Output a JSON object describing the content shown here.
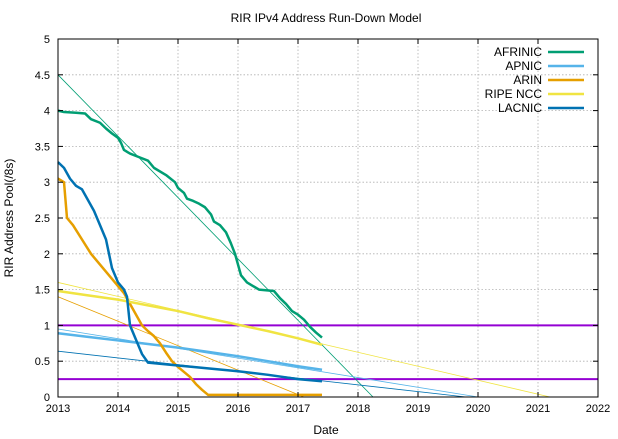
{
  "chart_data": {
    "type": "line",
    "title": "RIR IPv4 Address Run-Down Model",
    "xlabel": "Date",
    "ylabel": "RIR Address Pool(/8s)",
    "xlim": [
      2013,
      2022
    ],
    "ylim": [
      0,
      5
    ],
    "x_ticks": [
      "2013",
      "2014",
      "2015",
      "2016",
      "2017",
      "2018",
      "2019",
      "2020",
      "2021",
      "2022"
    ],
    "y_ticks": [
      "0",
      "0.5",
      "1",
      "1.5",
      "2",
      "2.5",
      "3",
      "3.5",
      "4",
      "4.5",
      "5"
    ],
    "grid": true,
    "legend_position": "top-right",
    "thresholds": [
      {
        "y": 1.0,
        "color": "#9400d3"
      },
      {
        "y": 0.25,
        "color": "#9400d3"
      }
    ],
    "series": [
      {
        "name": "AFRINIC",
        "color": "#009e73",
        "points": [
          [
            2013.0,
            4.0
          ],
          [
            2013.1,
            3.98
          ],
          [
            2013.3,
            3.97
          ],
          [
            2013.45,
            3.96
          ],
          [
            2013.55,
            3.88
          ],
          [
            2013.7,
            3.83
          ],
          [
            2013.8,
            3.75
          ],
          [
            2013.9,
            3.68
          ],
          [
            2014.0,
            3.62
          ],
          [
            2014.05,
            3.55
          ],
          [
            2014.1,
            3.45
          ],
          [
            2014.2,
            3.4
          ],
          [
            2014.35,
            3.35
          ],
          [
            2014.5,
            3.3
          ],
          [
            2014.6,
            3.2
          ],
          [
            2014.8,
            3.1
          ],
          [
            2014.95,
            3.0
          ],
          [
            2015.0,
            2.92
          ],
          [
            2015.1,
            2.85
          ],
          [
            2015.15,
            2.77
          ],
          [
            2015.25,
            2.74
          ],
          [
            2015.35,
            2.7
          ],
          [
            2015.45,
            2.65
          ],
          [
            2015.55,
            2.55
          ],
          [
            2015.6,
            2.45
          ],
          [
            2015.7,
            2.4
          ],
          [
            2015.8,
            2.3
          ],
          [
            2015.88,
            2.15
          ],
          [
            2015.95,
            2.0
          ],
          [
            2016.0,
            1.85
          ],
          [
            2016.05,
            1.7
          ],
          [
            2016.15,
            1.6
          ],
          [
            2016.25,
            1.55
          ],
          [
            2016.35,
            1.5
          ],
          [
            2016.6,
            1.48
          ],
          [
            2016.7,
            1.38
          ],
          [
            2016.8,
            1.3
          ],
          [
            2016.9,
            1.2
          ],
          [
            2017.0,
            1.15
          ],
          [
            2017.1,
            1.08
          ],
          [
            2017.2,
            0.98
          ],
          [
            2017.3,
            0.9
          ],
          [
            2017.4,
            0.83
          ]
        ],
        "trend": [
          [
            2013.0,
            4.5
          ],
          [
            2018.25,
            0.0
          ]
        ]
      },
      {
        "name": "APNIC",
        "color": "#56b4e9",
        "points": [
          [
            2013.0,
            0.89
          ],
          [
            2013.5,
            0.84
          ],
          [
            2014.0,
            0.79
          ],
          [
            2014.5,
            0.74
          ],
          [
            2015.0,
            0.69
          ],
          [
            2015.5,
            0.63
          ],
          [
            2016.0,
            0.57
          ],
          [
            2016.5,
            0.5
          ],
          [
            2017.0,
            0.43
          ],
          [
            2017.4,
            0.38
          ]
        ],
        "trend": [
          [
            2013.0,
            0.95
          ],
          [
            2020.0,
            0.0
          ]
        ]
      },
      {
        "name": "ARIN",
        "color": "#e69f00",
        "points": [
          [
            2013.0,
            3.05
          ],
          [
            2013.1,
            3.0
          ],
          [
            2013.15,
            2.5
          ],
          [
            2013.25,
            2.4
          ],
          [
            2013.4,
            2.2
          ],
          [
            2013.55,
            2.0
          ],
          [
            2013.7,
            1.85
          ],
          [
            2013.85,
            1.7
          ],
          [
            2014.0,
            1.55
          ],
          [
            2014.1,
            1.45
          ],
          [
            2014.2,
            1.3
          ],
          [
            2014.3,
            1.15
          ],
          [
            2014.4,
            1.0
          ],
          [
            2014.5,
            0.92
          ],
          [
            2014.6,
            0.85
          ],
          [
            2014.7,
            0.75
          ],
          [
            2014.8,
            0.62
          ],
          [
            2014.9,
            0.5
          ],
          [
            2015.0,
            0.42
          ],
          [
            2015.1,
            0.35
          ],
          [
            2015.2,
            0.28
          ],
          [
            2015.3,
            0.18
          ],
          [
            2015.4,
            0.1
          ],
          [
            2015.5,
            0.03
          ],
          [
            2016.0,
            0.03
          ],
          [
            2016.5,
            0.03
          ],
          [
            2017.0,
            0.03
          ],
          [
            2017.4,
            0.03
          ]
        ],
        "trend": [
          [
            2013.0,
            1.4
          ],
          [
            2017.1,
            0.0
          ]
        ]
      },
      {
        "name": "RIPE NCC",
        "color": "#f0e442",
        "points": [
          [
            2013.0,
            1.48
          ],
          [
            2013.5,
            1.42
          ],
          [
            2014.0,
            1.36
          ],
          [
            2014.5,
            1.28
          ],
          [
            2015.0,
            1.2
          ],
          [
            2015.5,
            1.1
          ],
          [
            2016.0,
            1.01
          ],
          [
            2016.5,
            0.92
          ],
          [
            2017.0,
            0.82
          ],
          [
            2017.4,
            0.73
          ]
        ],
        "trend": [
          [
            2013.0,
            1.6
          ],
          [
            2021.2,
            0.0
          ]
        ]
      },
      {
        "name": "LACNIC",
        "color": "#0072b2",
        "points": [
          [
            2013.0,
            3.28
          ],
          [
            2013.1,
            3.2
          ],
          [
            2013.2,
            3.05
          ],
          [
            2013.3,
            2.95
          ],
          [
            2013.4,
            2.9
          ],
          [
            2013.5,
            2.75
          ],
          [
            2013.6,
            2.6
          ],
          [
            2013.7,
            2.4
          ],
          [
            2013.8,
            2.2
          ],
          [
            2013.9,
            1.8
          ],
          [
            2014.0,
            1.6
          ],
          [
            2014.1,
            1.5
          ],
          [
            2014.15,
            1.4
          ],
          [
            2014.2,
            1.0
          ],
          [
            2014.3,
            0.8
          ],
          [
            2014.4,
            0.6
          ],
          [
            2014.5,
            0.48
          ],
          [
            2015.0,
            0.44
          ],
          [
            2015.5,
            0.4
          ],
          [
            2016.0,
            0.36
          ],
          [
            2016.5,
            0.31
          ],
          [
            2017.0,
            0.25
          ],
          [
            2017.4,
            0.22
          ]
        ],
        "trend": [
          [
            2013.0,
            0.64
          ],
          [
            2019.8,
            0.0
          ]
        ]
      }
    ]
  }
}
